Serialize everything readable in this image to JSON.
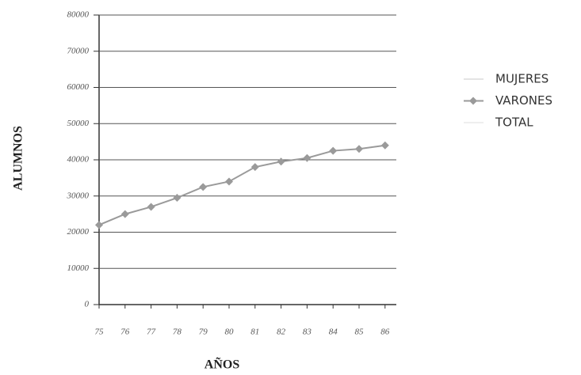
{
  "chart_data": {
    "type": "line",
    "x_label": "AÑOS",
    "y_label": "ALUMNOS",
    "categories": [
      "75",
      "76",
      "77",
      "78",
      "79",
      "80",
      "81",
      "82",
      "83",
      "84",
      "85",
      "86"
    ],
    "series": [
      {
        "name": "MUJERES",
        "color": "#e4e4e4",
        "values": [
          null,
          null,
          null,
          null,
          null,
          null,
          null,
          null,
          null,
          null,
          null,
          null
        ]
      },
      {
        "name": "VARONES",
        "color": "#9a9a9a",
        "values": [
          22000,
          25000,
          27000,
          29500,
          32500,
          34000,
          38000,
          39500,
          40500,
          42500,
          43000,
          44000
        ]
      },
      {
        "name": "TOTAL",
        "color": "#eeeeee",
        "values": [
          null,
          null,
          null,
          null,
          null,
          null,
          null,
          null,
          null,
          null,
          null,
          null
        ]
      }
    ],
    "ylim": [
      0,
      80000
    ],
    "yticks": [
      0,
      10000,
      20000,
      30000,
      40000,
      50000,
      60000,
      70000,
      80000
    ],
    "grid": true
  }
}
